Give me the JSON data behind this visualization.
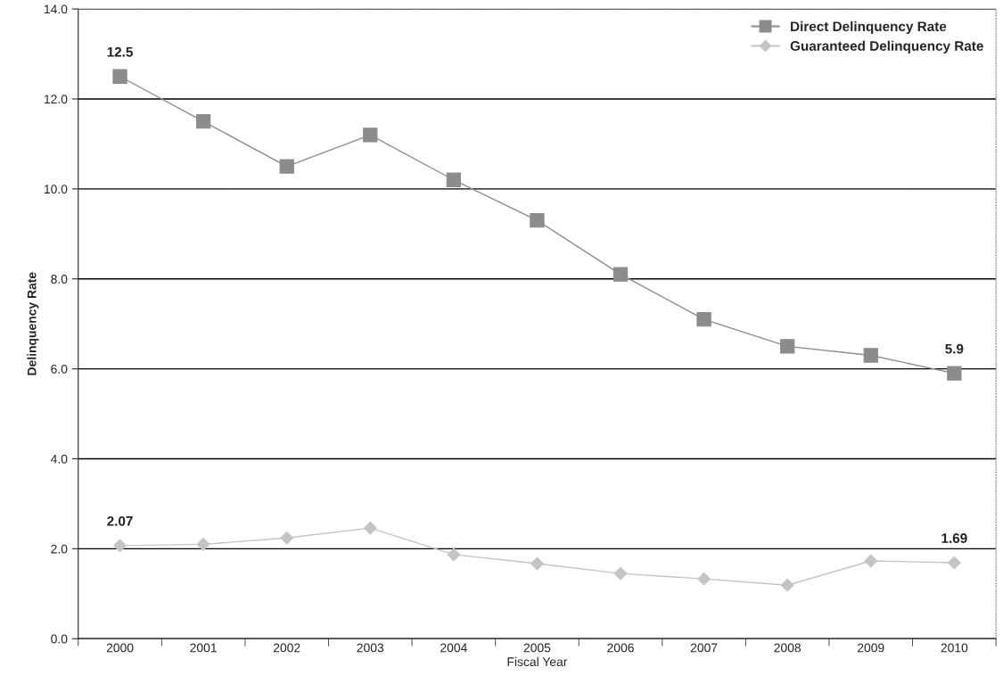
{
  "chart_data": {
    "type": "line",
    "xlabel": "Fiscal Year",
    "ylabel": "Delinquency Rate",
    "categories": [
      "2000",
      "2001",
      "2002",
      "2003",
      "2004",
      "2005",
      "2006",
      "2007",
      "2008",
      "2009",
      "2010"
    ],
    "series": [
      {
        "name": "Direct Delinquency Rate",
        "color": "#8c8c8c",
        "marker": "square",
        "values": [
          12.5,
          11.5,
          10.5,
          11.2,
          10.2,
          9.3,
          8.1,
          7.1,
          6.5,
          6.3,
          5.9
        ],
        "value_labels": [
          "12.5",
          null,
          null,
          null,
          null,
          null,
          null,
          null,
          null,
          null,
          "5.9"
        ]
      },
      {
        "name": "Guaranteed Delinquency Rate",
        "color": "#c4c4c4",
        "marker": "diamond",
        "values": [
          2.07,
          2.1,
          2.24,
          2.46,
          1.87,
          1.67,
          1.45,
          1.33,
          1.19,
          1.73,
          1.69
        ],
        "value_labels": [
          "2.07",
          null,
          null,
          null,
          null,
          null,
          null,
          null,
          null,
          null,
          "1.69"
        ]
      }
    ],
    "ylim": [
      0,
      14
    ],
    "yticks": [
      {
        "value": 0,
        "label": "0.0"
      },
      {
        "value": 2,
        "label": "2.0"
      },
      {
        "value": 4,
        "label": "4.0"
      },
      {
        "value": 6,
        "label": "6.0"
      },
      {
        "value": 8,
        "label": "8.0"
      },
      {
        "value": 10,
        "label": "10.0"
      },
      {
        "value": 12,
        "label": "12.0"
      },
      {
        "value": 14,
        "label": "14.0"
      }
    ],
    "grid": "y",
    "legend": "top right"
  }
}
